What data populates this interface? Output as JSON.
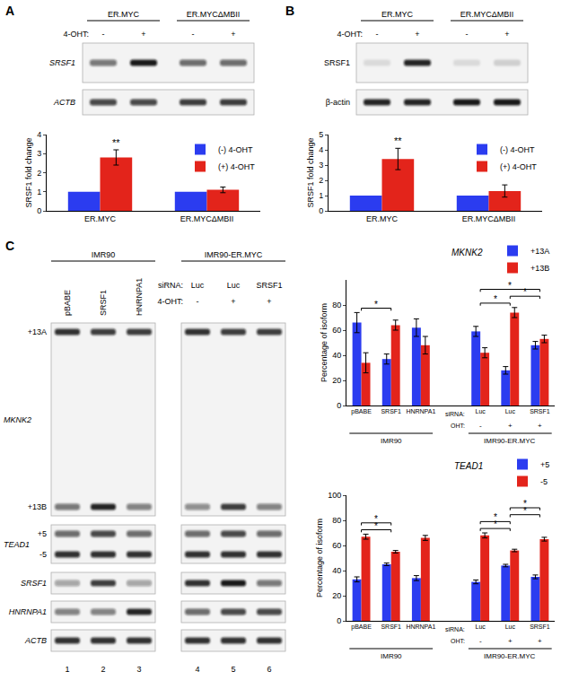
{
  "panel_labels": [
    "A",
    "B",
    "C"
  ],
  "chart_data": [
    {
      "type": "bar",
      "categories": [
        "ER.MYC",
        "ER.MYCΔMBII"
      ],
      "series": [
        {
          "name": "(-) 4-OHT",
          "color": "#2b3cf0",
          "values": [
            1,
            1
          ]
        },
        {
          "name": "(+) 4-OHT",
          "color": "#e3241b",
          "values": [
            2.8,
            1.1
          ],
          "errors": [
            0.4,
            0.15
          ]
        }
      ],
      "ylabel": "SRSF1 fold change",
      "ylim": [
        0,
        4
      ],
      "yticks": [
        0,
        1,
        2,
        3,
        4
      ],
      "grid": false,
      "legend": "top right",
      "marks": [
        {
          "category": 0,
          "series": 1,
          "text": "**"
        }
      ]
    },
    {
      "type": "bar",
      "categories": [
        "ER.MYC",
        "ER.MYCΔMBII"
      ],
      "series": [
        {
          "name": "(-) 4-OHT",
          "color": "#2b3cf0",
          "values": [
            1,
            1
          ]
        },
        {
          "name": "(+) 4-OHT",
          "color": "#e3241b",
          "values": [
            3.4,
            1.3
          ],
          "errors": [
            0.7,
            0.4
          ]
        }
      ],
      "ylabel": "SRSF1 fold change",
      "ylim": [
        0,
        5
      ],
      "yticks": [
        0,
        1,
        2,
        3,
        4,
        5
      ],
      "grid": false,
      "legend": "top right",
      "marks": [
        {
          "category": 0,
          "series": 1,
          "text": "**"
        }
      ]
    },
    {
      "type": "bar",
      "title": "MKNK2",
      "categories": [
        "pBABE",
        "SRSF1",
        "HNRNPA1",
        null,
        "Luc",
        "Luc",
        "SRSF1"
      ],
      "category_label": "siRNA:",
      "rows": [
        {
          "label": "OHT:",
          "values": [
            null,
            null,
            null,
            null,
            "-",
            "+",
            "+"
          ]
        }
      ],
      "groups": [
        {
          "label": "IMR90",
          "from": 0,
          "to": 2
        },
        {
          "label": "IMR90-ER.MYC",
          "from": 4,
          "to": 6
        }
      ],
      "series": [
        {
          "name": "+13A",
          "color": "#2b3cf0",
          "values": [
            66,
            37,
            62,
            null,
            59,
            28,
            48
          ],
          "errors": [
            8,
            4,
            7,
            null,
            4,
            3,
            3
          ]
        },
        {
          "name": "+13B",
          "color": "#e3241b",
          "values": [
            34,
            64,
            48,
            null,
            42,
            74,
            53
          ],
          "errors": [
            8,
            4,
            7,
            null,
            4,
            4,
            3
          ]
        }
      ],
      "ylabel": "Percentage of isoform",
      "ylim": [
        0,
        100
      ],
      "yticks": [
        0,
        20,
        40,
        60,
        80
      ],
      "grid": false,
      "legend": "top right",
      "significance": [
        {
          "from": 0,
          "to": 1,
          "label": "*"
        },
        {
          "from": 4,
          "to": 5,
          "label": "*"
        },
        {
          "from": 5,
          "to": 6,
          "label": "*"
        },
        {
          "from": 4,
          "to": 6,
          "label": "*"
        }
      ]
    },
    {
      "type": "bar",
      "title": "TEAD1",
      "categories": [
        "pBABE",
        "SRSF1",
        "HNRNPA1",
        null,
        "Luc",
        "Luc",
        "SRSF1"
      ],
      "category_label": "siRNA:",
      "rows": [
        {
          "label": "OHT:",
          "values": [
            null,
            null,
            null,
            null,
            "-",
            "+",
            "+"
          ]
        }
      ],
      "groups": [
        {
          "label": "IMR90",
          "from": 0,
          "to": 2
        },
        {
          "label": "IMR90-ER.MYC",
          "from": 4,
          "to": 6
        }
      ],
      "series": [
        {
          "name": "+5",
          "color": "#2b3cf0",
          "values": [
            33,
            45,
            34,
            null,
            31,
            44,
            35
          ],
          "errors": [
            2,
            1,
            2,
            null,
            1.5,
            1,
            1.5
          ]
        },
        {
          "name": "-5",
          "color": "#e3241b",
          "values": [
            67,
            55,
            66,
            null,
            68,
            56,
            65
          ],
          "errors": [
            2,
            1,
            2,
            null,
            2,
            1,
            1.5
          ]
        }
      ],
      "ylabel": "Percentage of isoform",
      "ylim": [
        0,
        100
      ],
      "yticks": [
        0,
        20,
        40,
        60,
        80,
        100
      ],
      "grid": false,
      "legend": "top right",
      "significance": [
        {
          "from": 0,
          "to": 1,
          "label": "*"
        },
        {
          "from": 0,
          "to": 1,
          "label": "*"
        },
        {
          "from": 4,
          "to": 5,
          "label": "*"
        },
        {
          "from": 4,
          "to": 5,
          "label": "*"
        },
        {
          "from": 5,
          "to": 6,
          "label": "*"
        },
        {
          "from": 5,
          "to": 6,
          "label": "*"
        }
      ]
    }
  ],
  "blots": [
    {
      "label_style": "italic",
      "groups": [
        {
          "label": "ER.MYC",
          "span": 2
        },
        {
          "label": "ER.MYCΔMBII",
          "span": 2
        }
      ],
      "lane_rows": [
        {
          "label": "4-OHT:",
          "values": [
            "-",
            "+",
            "-",
            "+"
          ]
        }
      ],
      "rows": [
        {
          "label": "SRSF1",
          "bands": [
            {
              "values": [
                0.55,
                0.95,
                0.6,
                0.6
              ]
            }
          ]
        },
        {
          "label": "ACTB",
          "bands": [
            {
              "values": [
                0.75,
                0.75,
                0.8,
                0.8
              ]
            }
          ]
        }
      ]
    },
    {
      "label_style": "normal",
      "groups": [
        {
          "label": "ER.MYC",
          "span": 2
        },
        {
          "label": "ER.MYCΔMBII",
          "span": 2
        }
      ],
      "lane_rows": [
        {
          "label": "4-OHT:",
          "values": [
            "-",
            "+",
            "-",
            "+"
          ]
        }
      ],
      "rows": [
        {
          "label": "SRSF1",
          "bands": [
            {
              "values": [
                0.1,
                0.9,
                0.1,
                0.15
              ]
            }
          ]
        },
        {
          "label": "β-actin",
          "bands": [
            {
              "values": [
                0.9,
                0.9,
                0.95,
                0.95
              ]
            }
          ]
        }
      ]
    },
    {
      "label_style": "italic",
      "groups": [
        {
          "label": "IMR90",
          "span": 3
        },
        {
          "label": "IMR90-ER.MYC",
          "span": 3
        }
      ],
      "lane_labels": [
        "pBABE",
        "SRSF1",
        "HNRNPA1",
        null,
        null,
        null
      ],
      "lane_rows": [
        {
          "label": "siRNA:",
          "values": [
            null,
            null,
            null,
            "Luc",
            "Luc",
            "SRSF1"
          ]
        },
        {
          "label": "4-OHT:",
          "values": [
            null,
            null,
            null,
            "-",
            "+",
            "+"
          ]
        }
      ],
      "rows": [
        {
          "label": "MKNK2",
          "bands": [
            {
              "label": "+13A",
              "values": [
                0.85,
                0.8,
                0.8,
                0.85,
                0.8,
                0.8
              ]
            },
            {
              "label": "+13B",
              "values": [
                0.55,
                0.9,
                0.5,
                0.45,
                0.8,
                0.5
              ]
            }
          ]
        },
        {
          "label": "TEAD1",
          "bands": [
            {
              "label": "+5",
              "values": [
                0.6,
                0.75,
                0.6,
                0.6,
                0.75,
                0.6
              ]
            },
            {
              "label": "-5",
              "values": [
                0.85,
                0.85,
                0.85,
                0.85,
                0.85,
                0.85
              ]
            }
          ]
        },
        {
          "label": "SRSF1",
          "bands": [
            {
              "values": [
                0.35,
                0.8,
                0.35,
                0.85,
                0.95,
                0.55
              ]
            }
          ]
        },
        {
          "label": "HNRNPA1",
          "bands": [
            {
              "values": [
                0.5,
                0.5,
                0.9,
                0.6,
                0.75,
                0.75
              ]
            }
          ]
        },
        {
          "label": "ACTB",
          "bands": [
            {
              "values": [
                0.85,
                0.85,
                0.85,
                0.85,
                0.85,
                0.85
              ]
            }
          ]
        }
      ],
      "lane_numbers": [
        1,
        2,
        3,
        4,
        5,
        6
      ]
    }
  ]
}
